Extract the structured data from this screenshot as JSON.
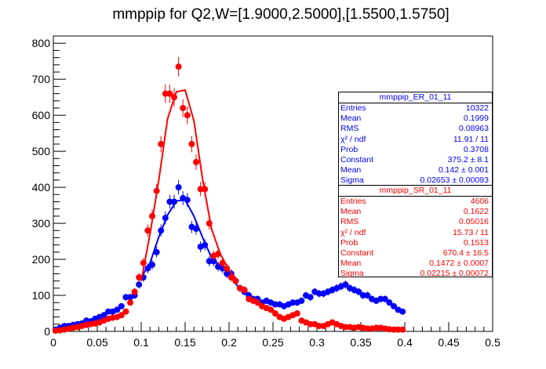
{
  "chart_data": {
    "type": "scatter",
    "title": "mmppip for Q2,W=[1.9000,2.5000],[1.5500,1.5750]",
    "xlim": [
      0,
      0.5
    ],
    "ylim": [
      0,
      820
    ],
    "x_ticks": [
      "0",
      "0.05",
      "0.1",
      "0.15",
      "0.2",
      "0.25",
      "0.3",
      "0.35",
      "0.4",
      "0.45",
      "0.5"
    ],
    "y_ticks": [
      "0",
      "100",
      "200",
      "300",
      "400",
      "500",
      "600",
      "700",
      "800"
    ],
    "grid": false,
    "legend_position": "right",
    "series": [
      {
        "name": "mmppip_ER_01_11",
        "color": "#0000ff",
        "x": [
          0.0025,
          0.0075,
          0.0125,
          0.0175,
          0.0225,
          0.0275,
          0.0325,
          0.0375,
          0.0425,
          0.0475,
          0.0525,
          0.0575,
          0.0625,
          0.0675,
          0.0725,
          0.0775,
          0.0825,
          0.0875,
          0.0925,
          0.0975,
          0.1025,
          0.1075,
          0.1125,
          0.1175,
          0.1225,
          0.1275,
          0.1325,
          0.1375,
          0.1425,
          0.1475,
          0.1525,
          0.1575,
          0.1625,
          0.1675,
          0.1725,
          0.1775,
          0.1825,
          0.1875,
          0.1925,
          0.1975,
          0.2025,
          0.2075,
          0.2125,
          0.2175,
          0.2225,
          0.2275,
          0.2325,
          0.2375,
          0.2425,
          0.2475,
          0.2525,
          0.2575,
          0.2625,
          0.2675,
          0.2725,
          0.2775,
          0.2825,
          0.2875,
          0.2925,
          0.2975,
          0.3025,
          0.3075,
          0.3125,
          0.3175,
          0.3225,
          0.3275,
          0.3325,
          0.3375,
          0.3425,
          0.3475,
          0.3525,
          0.3575,
          0.3625,
          0.3675,
          0.3725,
          0.3775,
          0.3825,
          0.3875,
          0.3925,
          0.3975
        ],
        "y": [
          5,
          10,
          15,
          15,
          18,
          20,
          22,
          30,
          28,
          35,
          40,
          45,
          55,
          55,
          60,
          70,
          95,
          95,
          100,
          130,
          150,
          175,
          185,
          220,
          280,
          315,
          360,
          360,
          400,
          370,
          365,
          290,
          285,
          235,
          240,
          195,
          195,
          180,
          175,
          160,
          160,
          140,
          120,
          110,
          100,
          90,
          90,
          80,
          85,
          80,
          75,
          75,
          70,
          75,
          80,
          80,
          85,
          100,
          95,
          110,
          105,
          105,
          110,
          115,
          120,
          125,
          130,
          120,
          115,
          110,
          100,
          100,
          90,
          85,
          90,
          90,
          80,
          70,
          60,
          55
        ],
        "fit_x": [
          0.1,
          0.11,
          0.12,
          0.13,
          0.14,
          0.15,
          0.16,
          0.17,
          0.18,
          0.19,
          0.2,
          0.21
        ],
        "fit_y": [
          150,
          190,
          262,
          323,
          362,
          365,
          320,
          260,
          205,
          180,
          160,
          125
        ]
      },
      {
        "name": "mmppip_SR_01_11",
        "color": "#ff0000",
        "x": [
          0.0025,
          0.0075,
          0.0125,
          0.0175,
          0.0225,
          0.0275,
          0.0325,
          0.0375,
          0.0425,
          0.0475,
          0.0525,
          0.0575,
          0.0625,
          0.0675,
          0.0725,
          0.0775,
          0.0825,
          0.0875,
          0.0925,
          0.0975,
          0.1025,
          0.1075,
          0.1125,
          0.1175,
          0.1225,
          0.1275,
          0.1325,
          0.1375,
          0.1425,
          0.1475,
          0.1525,
          0.1575,
          0.1625,
          0.1675,
          0.1725,
          0.1775,
          0.1825,
          0.1875,
          0.1925,
          0.1975,
          0.2025,
          0.2075,
          0.2125,
          0.2175,
          0.2225,
          0.2275,
          0.2325,
          0.2375,
          0.2425,
          0.2475,
          0.2525,
          0.2575,
          0.2625,
          0.2675,
          0.2725,
          0.2775,
          0.2825,
          0.2875,
          0.2925,
          0.2975,
          0.3025,
          0.3075,
          0.3125,
          0.3175,
          0.3225,
          0.3275,
          0.3325,
          0.3375,
          0.3425,
          0.3475,
          0.3525,
          0.3575,
          0.3625,
          0.3675,
          0.3725,
          0.3775,
          0.3825,
          0.3875,
          0.3925,
          0.3975
        ],
        "y": [
          2,
          3,
          5,
          8,
          10,
          12,
          15,
          18,
          20,
          22,
          25,
          30,
          35,
          38,
          40,
          45,
          55,
          80,
          110,
          150,
          190,
          280,
          320,
          390,
          520,
          660,
          660,
          650,
          735,
          620,
          600,
          520,
          470,
          395,
          395,
          300,
          210,
          215,
          190,
          175,
          150,
          140,
          120,
          115,
          90,
          85,
          80,
          70,
          65,
          60,
          50,
          40,
          35,
          40,
          45,
          50,
          30,
          25,
          20,
          20,
          15,
          15,
          20,
          25,
          20,
          15,
          12,
          12,
          10,
          12,
          10,
          8,
          8,
          10,
          10,
          8,
          6,
          5,
          5,
          5
        ],
        "fit_x": [
          0.1,
          0.11,
          0.12,
          0.13,
          0.14,
          0.15,
          0.16,
          0.17,
          0.18,
          0.19,
          0.2,
          0.21
        ],
        "fit_y": [
          140,
          270,
          420,
          590,
          665,
          670,
          585,
          420,
          285,
          215,
          170,
          140
        ]
      }
    ],
    "stat_boxes": [
      {
        "title": "mmppip_ER_01_11",
        "color": "#0000ff",
        "rows": [
          {
            "label": "Entries",
            "value": "10322"
          },
          {
            "label": "Mean",
            "value": "0.1999"
          },
          {
            "label": "RMS",
            "value": "0.08963"
          },
          {
            "label": "χ² / ndf",
            "value": "11.91 / 11"
          },
          {
            "label": "Prob",
            "value": "0.3708"
          },
          {
            "label": "Constant",
            "value": "375.2 ± 8.1"
          },
          {
            "label": "Mean",
            "value": "0.142 ± 0.001"
          },
          {
            "label": "Sigma",
            "value": "0.02653 ± 0.00093"
          }
        ]
      },
      {
        "title": "mmppip_SR_01_11",
        "color": "#ff0000",
        "rows": [
          {
            "label": "Entries",
            "value": "4606"
          },
          {
            "label": "Mean",
            "value": "0.1622"
          },
          {
            "label": "RMS",
            "value": "0.05016"
          },
          {
            "label": "χ² / ndf",
            "value": "15.73 / 11"
          },
          {
            "label": "Prob",
            "value": "0.1513"
          },
          {
            "label": "Constant",
            "value": "670.4 ± 16.5"
          },
          {
            "label": "Mean",
            "value": "0.1472 ± 0.0007"
          },
          {
            "label": "Sigma",
            "value": "0.02215 ± 0.00072"
          }
        ]
      }
    ]
  }
}
